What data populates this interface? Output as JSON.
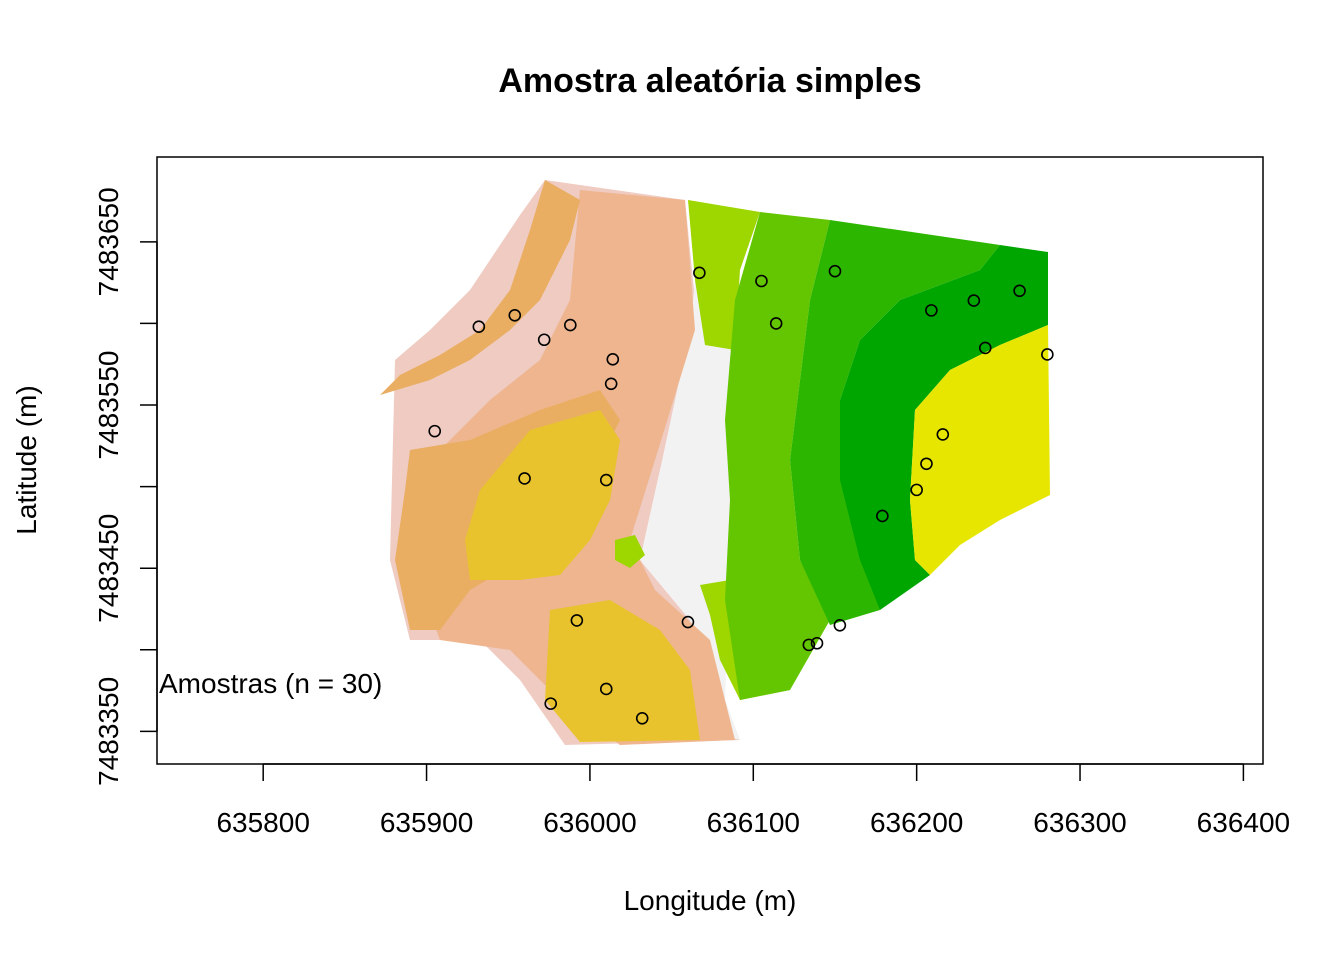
{
  "chart_data": {
    "type": "scatter",
    "title": "Amostra aleatória simples",
    "xlabel": "Longitude (m)",
    "ylabel": "Latitude (m)",
    "xlim": [
      635735,
      636412
    ],
    "ylim": [
      7483330,
      7483702
    ],
    "x_ticks": [
      635800,
      635900,
      636000,
      636100,
      636200,
      636300,
      636400
    ],
    "x_tick_labels": [
      "635800",
      "635900",
      "636000",
      "636100",
      "636200",
      "636300",
      "636400"
    ],
    "y_ticks": [
      7483350,
      7483400,
      7483450,
      7483500,
      7483550,
      7483600,
      7483650
    ],
    "y_tick_labels": [
      "7483350",
      "7483450",
      "7483550",
      "7483650"
    ],
    "grid": false,
    "legend": {
      "text": "Amostras (n = 30)",
      "placement": "bottom-left"
    },
    "background_raster": {
      "description_colors": [
        "#F2F2F2",
        "#EFCBC2",
        "#EEB58F",
        "#E9AE62",
        "#E8C32E",
        "#9ED600",
        "#63C600",
        "#2DB600",
        "#00A600",
        "#E6E600"
      ]
    },
    "series": [
      {
        "values": [
          {
            "x": 636067,
            "y": 7483631
          },
          {
            "x": 636105,
            "y": 7483626
          },
          {
            "x": 636150,
            "y": 7483632
          },
          {
            "x": 636263,
            "y": 7483620
          },
          {
            "x": 636235,
            "y": 7483614
          },
          {
            "x": 636209,
            "y": 7483608
          },
          {
            "x": 635954,
            "y": 7483605
          },
          {
            "x": 635932,
            "y": 7483598
          },
          {
            "x": 635988,
            "y": 7483599
          },
          {
            "x": 636114,
            "y": 7483600
          },
          {
            "x": 635972,
            "y": 7483590
          },
          {
            "x": 636242,
            "y": 7483585
          },
          {
            "x": 636280,
            "y": 7483581
          },
          {
            "x": 636014,
            "y": 7483578
          },
          {
            "x": 636013,
            "y": 7483563
          },
          {
            "x": 635905,
            "y": 7483534
          },
          {
            "x": 636216,
            "y": 7483532
          },
          {
            "x": 636206,
            "y": 7483514
          },
          {
            "x": 635960,
            "y": 7483505
          },
          {
            "x": 636010,
            "y": 7483504
          },
          {
            "x": 636200,
            "y": 7483498
          },
          {
            "x": 636179,
            "y": 7483482
          },
          {
            "x": 635992,
            "y": 7483418
          },
          {
            "x": 636060,
            "y": 7483417
          },
          {
            "x": 636153,
            "y": 7483415
          },
          {
            "x": 636139,
            "y": 7483404
          },
          {
            "x": 636134,
            "y": 7483403
          },
          {
            "x": 636010,
            "y": 7483376
          },
          {
            "x": 635976,
            "y": 7483367
          },
          {
            "x": 636032,
            "y": 7483358
          }
        ]
      }
    ]
  }
}
